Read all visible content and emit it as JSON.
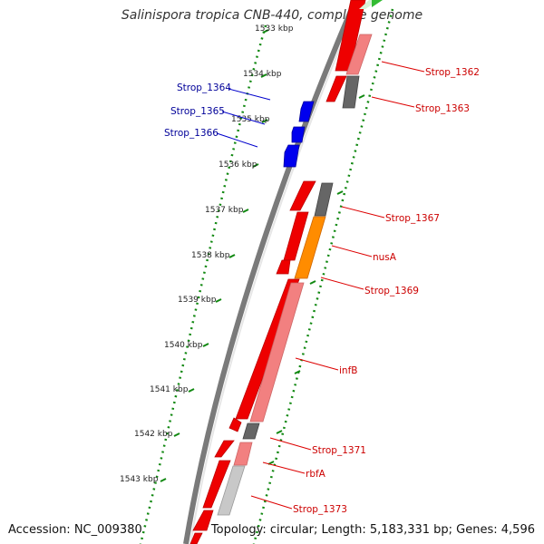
{
  "title": "Salinispora tropica CNB-440, complete genome",
  "footer": {
    "accession": "Accession: NC_009380",
    "summary": "Topology: circular; Length: 5,183,331 bp; Genes: 4,596"
  },
  "ruler": {
    "unit": "kbp",
    "labels": [
      "1533 kbp",
      "1534 kbp",
      "1535 kbp",
      "1536 kbp",
      "1537 kbp",
      "1538 kbp",
      "1539 kbp",
      "1540 kbp",
      "1541 kbp",
      "1542 kbp",
      "1543 kbp"
    ]
  },
  "colors": {
    "cds_forward": "#ee0000",
    "cds_reverse": "#f28080",
    "other_feature": "#666666",
    "rna": "#ff8c00",
    "blue_feature": "#0000ee",
    "label_right": "#cc0000",
    "label_left": "#000099",
    "ruler_dots": "#118811",
    "backbone": "#888888"
  },
  "gene_labels_left": [
    "Strop_1364",
    "Strop_1365",
    "Strop_1366"
  ],
  "gene_labels_right": [
    "Strop_1362",
    "Strop_1363",
    "Strop_1367",
    "nusA",
    "Strop_1369",
    "infB",
    "Strop_1371",
    "rbfA",
    "Strop_1373"
  ]
}
